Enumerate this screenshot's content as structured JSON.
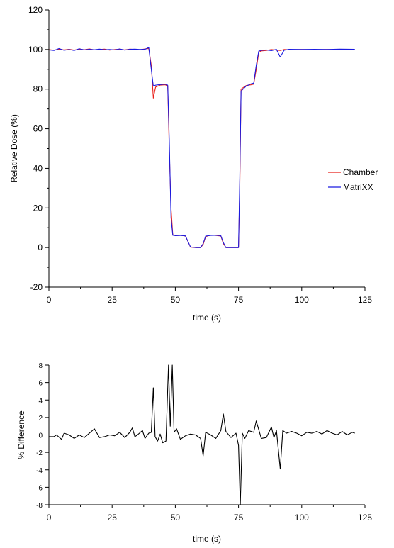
{
  "chart_data": [
    {
      "type": "line",
      "title": "",
      "xlabel": "time (s)",
      "ylabel": "Relative Dose (%)",
      "xlim": [
        0,
        125
      ],
      "ylim": [
        -20,
        120
      ],
      "xticks": [
        0,
        25,
        50,
        75,
        100,
        125
      ],
      "yticks": [
        -20,
        0,
        20,
        40,
        60,
        80,
        100,
        120
      ],
      "grid": false,
      "legend_position": "right",
      "series": [
        {
          "name": "Chamber",
          "color": "#e8201a",
          "x": [
            0,
            2,
            4,
            6,
            8,
            10,
            12,
            14,
            16,
            18,
            20,
            22,
            24,
            26,
            28,
            30,
            32,
            34,
            36,
            38,
            39.5,
            40.5,
            41.3,
            42.2,
            44,
            46,
            47,
            47.6,
            48.3,
            49,
            50,
            52,
            54,
            56,
            58,
            60,
            61,
            62,
            64,
            66,
            68,
            69,
            70,
            72,
            74,
            75,
            75.5,
            76,
            78,
            80,
            81,
            82,
            83,
            84,
            86,
            88,
            90,
            91.5,
            93,
            95,
            100,
            105,
            110,
            115,
            121
          ],
          "y": [
            100,
            99.6,
            100.2,
            99.8,
            100.1,
            99.7,
            100.2,
            99.9,
            100.3,
            99.8,
            100,
            100.2,
            99.7,
            100,
            100.1,
            99.8,
            100.2,
            100,
            99.9,
            100.3,
            100.5,
            92,
            75.5,
            81,
            82,
            82.2,
            81.5,
            50,
            20,
            6.5,
            6,
            6.2,
            5.8,
            0.2,
            0,
            0,
            1.5,
            5.5,
            6.3,
            6.1,
            5.8,
            2,
            0,
            0,
            0,
            0,
            30,
            80,
            81.8,
            82.2,
            82.5,
            90,
            98.5,
            99.3,
            99.5,
            100,
            99.7,
            99.5,
            100,
            99.9,
            100,
            99.9,
            100,
            99.9,
            99.8
          ]
        },
        {
          "name": "MatriXX",
          "color": "#1a1ae0",
          "x": [
            0,
            2,
            4,
            6,
            8,
            10,
            12,
            14,
            16,
            18,
            20,
            22,
            24,
            26,
            28,
            30,
            32,
            34,
            36,
            38,
            39.5,
            40.5,
            41.3,
            42.2,
            44,
            46,
            47,
            47.6,
            48.3,
            49,
            50,
            52,
            54,
            56,
            58,
            60,
            61,
            62,
            64,
            66,
            68,
            69,
            70,
            72,
            74,
            75,
            75.5,
            76,
            78,
            80,
            81,
            82,
            83,
            84,
            86,
            88,
            90,
            91.5,
            93,
            95,
            100,
            105,
            110,
            115,
            121
          ],
          "y": [
            99.8,
            99.5,
            100.5,
            99.6,
            100,
            99.5,
            100.4,
            99.8,
            100.1,
            99.9,
            100.2,
            99.9,
            100,
            99.8,
            100.3,
            99.7,
            100.1,
            100.2,
            100,
            100.1,
            101,
            90,
            81.5,
            82,
            82.3,
            82.5,
            82,
            55,
            15,
            6.2,
            6,
            6.1,
            5.9,
            0.3,
            0,
            0,
            2,
            5.8,
            6.1,
            6.2,
            6,
            2.5,
            0,
            0,
            0,
            0,
            35,
            79,
            81.5,
            82.7,
            83,
            92,
            99.2,
            99.6,
            99.8,
            99.4,
            100.1,
            96.2,
            99.6,
            100.1,
            100,
            100.1,
            100,
            100.2,
            100.1
          ]
        }
      ]
    },
    {
      "type": "line",
      "title": "",
      "xlabel": "time (s)",
      "ylabel": "% Difference",
      "xlim": [
        0,
        125
      ],
      "ylim": [
        -8,
        8
      ],
      "xticks": [
        0,
        25,
        50,
        75,
        100,
        125
      ],
      "yticks": [
        -8,
        -6,
        -4,
        -2,
        0,
        2,
        4,
        6,
        8
      ],
      "grid": false,
      "series": [
        {
          "name": "",
          "color": "#000000",
          "x": [
            0,
            2,
            3,
            5,
            6,
            8,
            10,
            12,
            14,
            16,
            18,
            20,
            22,
            24,
            26,
            28,
            30,
            32,
            33,
            34,
            35,
            37,
            38,
            39.5,
            40.5,
            41.3,
            42,
            43,
            44,
            45,
            46.3,
            47.3,
            48,
            48.8,
            49.5,
            50.5,
            52,
            54,
            56,
            58,
            60,
            61,
            62,
            64,
            66,
            68,
            69,
            70,
            72,
            74,
            75,
            75.7,
            76.5,
            77.5,
            79,
            81,
            82,
            83,
            84,
            86,
            88,
            89,
            90,
            91.5,
            92.5,
            94,
            96,
            98,
            100,
            102,
            104,
            106,
            108,
            110,
            112,
            114,
            116,
            118,
            120,
            121
          ],
          "y": [
            -0.2,
            -0.2,
            0,
            -0.5,
            0.2,
            0,
            -0.4,
            0,
            -0.3,
            0.2,
            0.7,
            -0.3,
            -0.2,
            0,
            -0.1,
            0.3,
            -0.3,
            0.3,
            0.8,
            -0.2,
            0,
            0.5,
            -0.4,
            0.2,
            0.3,
            5.4,
            -0.2,
            -0.7,
            0.1,
            -0.9,
            -0.7,
            8,
            1,
            8,
            0.3,
            0.7,
            -0.5,
            -0.1,
            0.1,
            0,
            -0.4,
            -2.4,
            0.3,
            0,
            -0.4,
            0.5,
            2.4,
            0.4,
            -0.3,
            0.2,
            -1.2,
            -8,
            0.2,
            -0.4,
            0.5,
            0.3,
            1.6,
            0.6,
            -0.4,
            -0.3,
            0.9,
            -0.3,
            0.5,
            -3.9,
            0.5,
            0.2,
            0.4,
            0.2,
            -0.1,
            0.3,
            0.2,
            0.4,
            0.1,
            0.5,
            0.2,
            0,
            0.4,
            0,
            0.3,
            0.2
          ]
        }
      ]
    }
  ]
}
